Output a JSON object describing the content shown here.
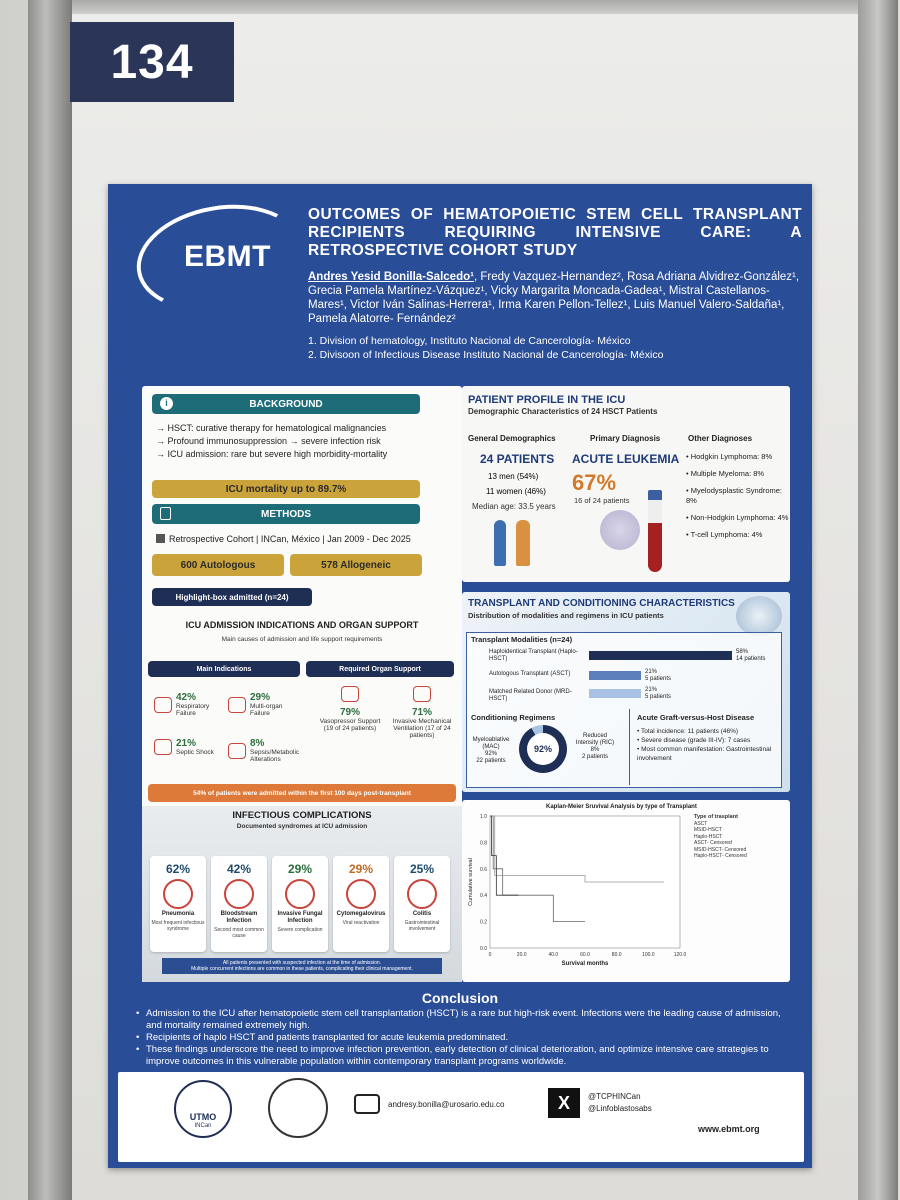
{
  "board_number": "134",
  "header": {
    "logo": "EBMT",
    "title": "OUTCOMES OF HEMATOPOIETIC STEM CELL TRANSPLANT RECIPIENTS REQUIRING INTENSIVE CARE: A RETROSPECTIVE COHORT STUDY",
    "lead_author": "Andres Yesid Bonilla-Salcedo¹",
    "other_authors": ", Fredy Vazquez-Hernandez², Rosa Adriana Alvidrez-González¹, Grecia Pamela Martínez-Vázquez¹, Vicky Margarita Moncada-Gadea¹, Mistral Castellanos-Mares¹, Victor Iván Salinas-Herrera¹, Irma Karen Pellon-Tellez¹, Luis Manuel Valero-Saldaña¹, Pamela Alatorre- Fernández²",
    "affiliation_1": "1.  Division of hematology, Instituto Nacional de Cancerología- México",
    "affiliation_2": "2.  Divisoon of Infectious Disease Instituto Nacional de Cancerología- México"
  },
  "background": {
    "label": "BACKGROUND",
    "bullet_1": "→ HSCT: curative therapy for hematological malignancies",
    "bullet_2": "→ Profound immunosuppression → severe infection risk",
    "bullet_3": "→ ICU admission: rare but severe high morbidity-mortality",
    "mortality": "ICU mortality up to 89.7%"
  },
  "methods": {
    "label": "METHODS",
    "design": "Retrospective Cohort | INCan, México | Jan 2009 - Dec 2025",
    "autologous": "600 Autologous",
    "allogeneic": "578 Allogeneic",
    "highlight": "Highlight-box admitted (n=24)"
  },
  "icu": {
    "title": "ICU ADMISSION INDICATIONS AND ORGAN SUPPORT",
    "subtitle": "Main causes of admission and life support requirements",
    "indications_label": "Main Indications",
    "support_label": "Required Organ Support",
    "resp_pct": "42%",
    "resp_lbl": "Respiratory Failure",
    "multi_pct": "29%",
    "multi_lbl": "Multi-organ Failure",
    "septic_pct": "21%",
    "septic_lbl": "Septic Shock",
    "sepsis_pct": "8%",
    "sepsis_lbl": "Sepsis/Metabolic Alterations",
    "vaso_pct": "79%",
    "vaso_lbl": "Vasopressor Support (19 of 24 patients)",
    "mv_pct": "71%",
    "mv_lbl": "Invasive Mechanical Ventilation (17 of 24 patients)",
    "banner": "54% of patients were admitted within the first 100 days post-transplant"
  },
  "infections": {
    "title": "INFECTIOUS COMPLICATIONS",
    "subtitle": "Documented syndromes at ICU admission",
    "cards": [
      {
        "pct": "62%",
        "name": "Pneumonia",
        "sub": "Most frequent infectious syndrome"
      },
      {
        "pct": "42%",
        "name": "Bloodstream Infection",
        "sub": "Second most common cause"
      },
      {
        "pct": "29%",
        "name": "Invasive Fungal Infection",
        "sub": "Severe complication"
      },
      {
        "pct": "29%",
        "name": "Cytomegalovirus",
        "sub": "Viral reactivation"
      },
      {
        "pct": "25%",
        "name": "Colitis",
        "sub": "Gastrointestinal involvement"
      }
    ],
    "note_1": "All patients presented with suspected infection at the time of admission.",
    "note_2": "Multiple concurrent infections are common in these patients, complicating their clinical management."
  },
  "profile": {
    "title": "PATIENT PROFILE IN THE ICU",
    "subtitle": "Demographic Characteristics of 24 HSCT Patients",
    "gen_h": "General Demographics",
    "diag_h": "Primary Diagnosis",
    "other_h": "Other Diagnoses",
    "patients": "24 PATIENTS",
    "men": "13 men (54%)",
    "women": "11 women (46%)",
    "age": "Median age: 33.5 years",
    "diag": "ACUTE LEUKEMIA",
    "diag_pct": "67%",
    "diag_n": "16 of 24 patients",
    "other_1": "Hodgkin Lymphoma: 8%",
    "other_2": "Multiple Myeloma: 8%",
    "other_3": "Myelodysplastic Syndrome: 8%",
    "other_4": "Non-Hodgkin Lymphoma: 4%",
    "other_5": "T-cell Lymphoma: 4%"
  },
  "transplant": {
    "title": "TRANSPLANT AND CONDITIONING CHARACTERISTICS",
    "subtitle": "Distribution of modalities and regimens in ICU patients",
    "modalities_h": "Transplant Modalities (n=24)",
    "m1": "Haploidentical Transplant (Haplo-HSCT)",
    "m1_pct": "58%",
    "m1_n": "14 patients",
    "m1_frac": 0.58,
    "m2": "Autologous Transplant (ASCT)",
    "m2_pct": "21%",
    "m2_n": "5 patients",
    "m2_frac": 0.21,
    "m3": "Matched Related Donor (MRD-HSCT)",
    "m3_pct": "21%",
    "m3_n": "5 patients",
    "m3_frac": 0.21,
    "regimens_h": "Conditioning Regimens",
    "mac": "Myeloablative (MAC)",
    "mac_pct": "92%",
    "mac_n": "22 patients",
    "donut_pct": "92%",
    "ric": "Reduced Intensity (RIC)",
    "ric_pct": "8%",
    "ric_n": "2 patients",
    "gvhd_h": "Acute Graft-versus-Host Disease",
    "gvhd_1": "Total incidence: 11 patients (46%)",
    "gvhd_2": "Severe disease (grade III-IV): 7 cases",
    "gvhd_3": "Most common manifestation: Gastrointestinal involvement"
  },
  "km": {
    "title": "Kaplan-Meier Sruvival Analysis by type of Transplant",
    "ylabel": "Cumulative survival",
    "xlabel": "Survival months",
    "legend_h": "Type of trasplant",
    "legend": [
      "ASCT",
      "MSID-HSCT",
      "Haplo-HSCT",
      "ASCT- Censored",
      "MSID-HSCT- Censored",
      "Haplo-HSCT- Censored"
    ],
    "yticks": [
      "1.0",
      "0.8",
      "0.6",
      "0.4",
      "0.2",
      "0.0"
    ],
    "xticks": [
      "0",
      "20.0",
      "40.0",
      "60.0",
      "80.0",
      "100.0",
      "120.0"
    ]
  },
  "conclusion": {
    "title": "Conclusion",
    "p1": "Admission to the ICU after hematopoietic stem cell transplantation (HSCT) is a rare but high-risk event. Infections were the leading cause of admission, and mortality remained extremely high.",
    "p2": "Recipients of haplo HSCT and patients transplanted for acute leukemia predominated.",
    "p3": "These findings underscore the need to improve infection prevention, early detection of clinical deterioration, and optimize intensive care strategies to improve outcomes in this vulnerable population within contemporary transplant programs worldwide."
  },
  "footer": {
    "utmo": "UTMO",
    "incan": "INCan",
    "email": "andresy.bonilla@urosario.edu.co",
    "x_handle_1": "@TCPHINCan",
    "x_handle_2": "@Linfoblastosabs",
    "website": "www.ebmt.org"
  }
}
